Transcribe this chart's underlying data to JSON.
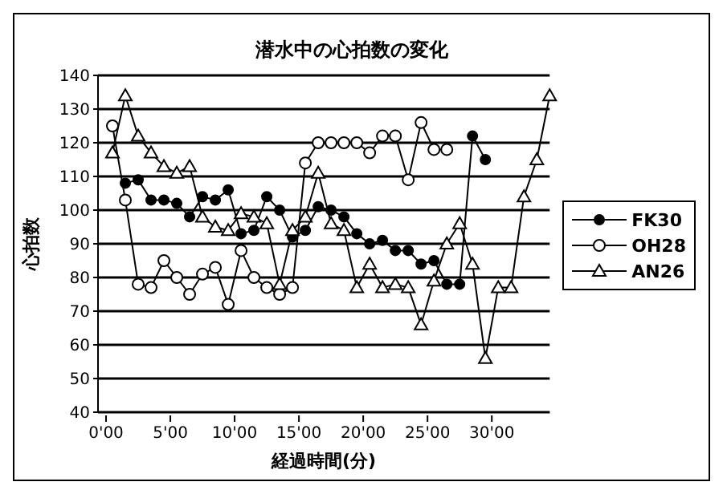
{
  "chart_data": {
    "type": "line",
    "title": "潜水中の心拍数の変化",
    "xlabel": "経過時間(分)",
    "ylabel": "心拍数",
    "categories": [
      "0'00",
      null,
      null,
      null,
      null,
      null,
      null,
      null,
      null,
      null,
      "5'00",
      null,
      null,
      null,
      null,
      null,
      null,
      null,
      null,
      null,
      "10'00",
      null,
      null,
      null,
      null,
      null,
      null,
      null,
      null,
      null,
      "15'00",
      null,
      null,
      null,
      null,
      null,
      null,
      null,
      null,
      null,
      "20'00",
      null,
      null,
      null,
      null,
      null,
      null,
      null,
      null,
      null,
      "25'00",
      null,
      null,
      null,
      null,
      null,
      null,
      null,
      null,
      null,
      "30'00",
      null,
      null,
      null,
      null,
      null,
      null,
      null,
      null,
      null
    ],
    "ylim": [
      40,
      140
    ],
    "yticks": [
      40,
      50,
      60,
      70,
      80,
      90,
      100,
      110,
      120,
      130,
      140
    ],
    "grid": "y",
    "legend": "right",
    "line_style": "solid",
    "series": [
      {
        "name": "FK30",
        "color": "#000000",
        "marker": "circle",
        "values": [
          null,
          null,
          null,
          108,
          null,
          109,
          null,
          103,
          null,
          103,
          null,
          102,
          null,
          98,
          null,
          104,
          null,
          103,
          null,
          106,
          null,
          93,
          null,
          94,
          null,
          104,
          null,
          100,
          null,
          92,
          null,
          94,
          null,
          101,
          null,
          100,
          null,
          98,
          null,
          93,
          null,
          90,
          null,
          91,
          null,
          88,
          null,
          88,
          null,
          84,
          null,
          85,
          null,
          78,
          null,
          78,
          null,
          122,
          null,
          115,
          null,
          null,
          null,
          null,
          null,
          null,
          null,
          null,
          null,
          null
        ]
      },
      {
        "name": "OH28",
        "color": "#000000",
        "marker": "circle_open",
        "values": [
          null,
          125,
          null,
          103,
          null,
          78,
          null,
          77,
          null,
          85,
          null,
          80,
          null,
          75,
          null,
          81,
          null,
          83,
          null,
          72,
          null,
          88,
          null,
          80,
          null,
          77,
          null,
          75,
          null,
          77,
          null,
          114,
          null,
          120,
          null,
          120,
          null,
          120,
          null,
          120,
          null,
          117,
          null,
          122,
          null,
          122,
          null,
          109,
          null,
          126,
          null,
          118,
          null,
          118,
          null,
          null,
          null,
          null,
          null,
          null,
          null,
          null,
          null,
          null,
          null,
          null,
          null,
          null,
          null,
          null
        ]
      },
      {
        "name": "AN26",
        "color": "#000000",
        "marker": "triangle",
        "values": [
          null,
          117,
          null,
          134,
          null,
          122,
          null,
          117,
          null,
          113,
          null,
          111,
          null,
          113,
          null,
          98,
          null,
          95,
          null,
          94,
          null,
          99,
          null,
          98,
          null,
          96,
          null,
          78,
          null,
          94,
          null,
          98,
          null,
          111,
          null,
          96,
          null,
          94,
          null,
          77,
          null,
          84,
          null,
          77,
          null,
          78,
          null,
          77,
          null,
          66,
          null,
          79,
          null,
          90,
          null,
          96,
          null,
          84,
          null,
          56,
          null,
          77,
          null,
          77,
          null,
          104,
          null,
          115,
          null,
          134
        ]
      }
    ]
  }
}
